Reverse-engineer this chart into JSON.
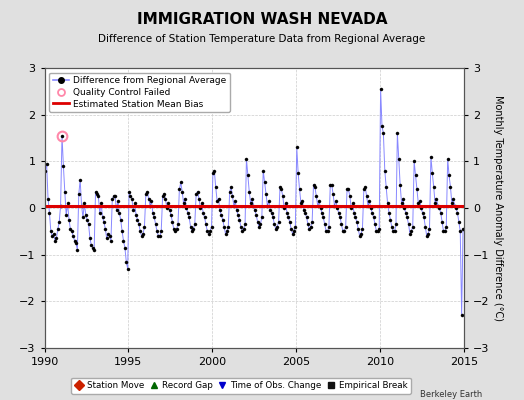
{
  "title": "IMMIGRATION WASH NEVADA",
  "subtitle": "Difference of Station Temperature Data from Regional Average",
  "ylabel": "Monthly Temperature Anomaly Difference (°C)",
  "bias": 0.05,
  "xlim": [
    1990,
    2015
  ],
  "ylim": [
    -3,
    3
  ],
  "yticks": [
    -3,
    -2,
    -1,
    0,
    1,
    2,
    3
  ],
  "xticks": [
    1990,
    1995,
    2000,
    2005,
    2010,
    2015
  ],
  "bg_color": "#e0e0e0",
  "plot_bg_color": "#ffffff",
  "line_color": "#8888ff",
  "marker_color": "#000000",
  "bias_color": "#dd0000",
  "qc_edge_color": "#ff88aa",
  "watermark": "Berkeley Earth",
  "data_x": [
    1990.042,
    1990.125,
    1990.208,
    1990.292,
    1990.375,
    1990.458,
    1990.542,
    1990.625,
    1990.708,
    1990.792,
    1990.875,
    1990.958,
    1991.042,
    1991.125,
    1991.208,
    1991.292,
    1991.375,
    1991.458,
    1991.542,
    1991.625,
    1991.708,
    1991.792,
    1991.875,
    1991.958,
    1992.042,
    1992.125,
    1992.208,
    1992.292,
    1992.375,
    1992.458,
    1992.542,
    1992.625,
    1992.708,
    1992.792,
    1992.875,
    1992.958,
    1993.042,
    1993.125,
    1993.208,
    1993.292,
    1993.375,
    1993.458,
    1993.542,
    1993.625,
    1993.708,
    1993.792,
    1993.875,
    1993.958,
    1994.042,
    1994.125,
    1994.208,
    1994.292,
    1994.375,
    1994.458,
    1994.542,
    1994.625,
    1994.708,
    1994.792,
    1994.875,
    1994.958,
    1995.042,
    1995.125,
    1995.208,
    1995.292,
    1995.375,
    1995.458,
    1995.542,
    1995.625,
    1995.708,
    1995.792,
    1995.875,
    1995.958,
    1996.042,
    1996.125,
    1996.208,
    1996.292,
    1996.375,
    1996.458,
    1996.542,
    1996.625,
    1996.708,
    1996.792,
    1996.875,
    1996.958,
    1997.042,
    1997.125,
    1997.208,
    1997.292,
    1997.375,
    1997.458,
    1997.542,
    1997.625,
    1997.708,
    1997.792,
    1997.875,
    1997.958,
    1998.042,
    1998.125,
    1998.208,
    1998.292,
    1998.375,
    1998.458,
    1998.542,
    1998.625,
    1998.708,
    1998.792,
    1998.875,
    1998.958,
    1999.042,
    1999.125,
    1999.208,
    1999.292,
    1999.375,
    1999.458,
    1999.542,
    1999.625,
    1999.708,
    1999.792,
    1999.875,
    1999.958,
    2000.042,
    2000.125,
    2000.208,
    2000.292,
    2000.375,
    2000.458,
    2000.542,
    2000.625,
    2000.708,
    2000.792,
    2000.875,
    2000.958,
    2001.042,
    2001.125,
    2001.208,
    2001.292,
    2001.375,
    2001.458,
    2001.542,
    2001.625,
    2001.708,
    2001.792,
    2001.875,
    2001.958,
    2002.042,
    2002.125,
    2002.208,
    2002.292,
    2002.375,
    2002.458,
    2002.542,
    2002.625,
    2002.708,
    2002.792,
    2002.875,
    2002.958,
    2003.042,
    2003.125,
    2003.208,
    2003.292,
    2003.375,
    2003.458,
    2003.542,
    2003.625,
    2003.708,
    2003.792,
    2003.875,
    2003.958,
    2004.042,
    2004.125,
    2004.208,
    2004.292,
    2004.375,
    2004.458,
    2004.542,
    2004.625,
    2004.708,
    2004.792,
    2004.875,
    2004.958,
    2005.042,
    2005.125,
    2005.208,
    2005.292,
    2005.375,
    2005.458,
    2005.542,
    2005.625,
    2005.708,
    2005.792,
    2005.875,
    2005.958,
    2006.042,
    2006.125,
    2006.208,
    2006.292,
    2006.375,
    2006.458,
    2006.542,
    2006.625,
    2006.708,
    2006.792,
    2006.875,
    2006.958,
    2007.042,
    2007.125,
    2007.208,
    2007.292,
    2007.375,
    2007.458,
    2007.542,
    2007.625,
    2007.708,
    2007.792,
    2007.875,
    2007.958,
    2008.042,
    2008.125,
    2008.208,
    2008.292,
    2008.375,
    2008.458,
    2008.542,
    2008.625,
    2008.708,
    2008.792,
    2008.875,
    2008.958,
    2009.042,
    2009.125,
    2009.208,
    2009.292,
    2009.375,
    2009.458,
    2009.542,
    2009.625,
    2009.708,
    2009.792,
    2009.875,
    2009.958,
    2010.042,
    2010.125,
    2010.208,
    2010.292,
    2010.375,
    2010.458,
    2010.542,
    2010.625,
    2010.708,
    2010.792,
    2010.875,
    2010.958,
    2011.042,
    2011.125,
    2011.208,
    2011.292,
    2011.375,
    2011.458,
    2011.542,
    2011.625,
    2011.708,
    2011.792,
    2011.875,
    2011.958,
    2012.042,
    2012.125,
    2012.208,
    2012.292,
    2012.375,
    2012.458,
    2012.542,
    2012.625,
    2012.708,
    2012.792,
    2012.875,
    2012.958,
    2013.042,
    2013.125,
    2013.208,
    2013.292,
    2013.375,
    2013.458,
    2013.542,
    2013.625,
    2013.708,
    2013.792,
    2013.875,
    2013.958,
    2014.042,
    2014.125,
    2014.208,
    2014.292,
    2014.375,
    2014.458,
    2014.542,
    2014.625,
    2014.708,
    2014.792,
    2014.875,
    2014.958
  ],
  "data_y": [
    0.8,
    0.95,
    0.2,
    -0.1,
    -0.5,
    -0.6,
    -0.55,
    -0.7,
    -0.65,
    -0.45,
    -0.3,
    0.05,
    1.55,
    0.9,
    0.35,
    -0.15,
    0.1,
    -0.25,
    -0.45,
    -0.5,
    -0.6,
    -0.7,
    -0.75,
    -0.9,
    0.3,
    0.6,
    0.05,
    -0.2,
    0.1,
    -0.15,
    -0.25,
    -0.35,
    -0.65,
    -0.8,
    -0.85,
    -0.9,
    0.35,
    0.3,
    0.25,
    -0.1,
    0.1,
    -0.2,
    -0.3,
    -0.45,
    -0.65,
    -0.55,
    -0.6,
    -0.7,
    0.2,
    0.25,
    0.25,
    -0.05,
    0.15,
    -0.1,
    -0.25,
    -0.5,
    -0.7,
    -0.85,
    -1.15,
    -1.3,
    0.35,
    0.25,
    0.2,
    -0.05,
    0.1,
    -0.15,
    -0.25,
    -0.35,
    -0.5,
    -0.6,
    -0.55,
    -0.4,
    0.3,
    0.35,
    0.2,
    0.05,
    0.15,
    -0.1,
    -0.2,
    -0.35,
    -0.5,
    -0.6,
    -0.6,
    -0.5,
    0.25,
    0.3,
    0.2,
    0.0,
    0.1,
    -0.05,
    -0.15,
    -0.3,
    -0.45,
    -0.5,
    -0.45,
    -0.35,
    0.4,
    0.55,
    0.35,
    0.1,
    0.2,
    0.0,
    -0.1,
    -0.2,
    -0.4,
    -0.5,
    -0.45,
    -0.35,
    0.3,
    0.35,
    0.2,
    0.0,
    0.1,
    -0.1,
    -0.2,
    -0.35,
    -0.5,
    -0.55,
    -0.5,
    -0.4,
    0.75,
    0.8,
    0.45,
    0.15,
    0.2,
    -0.05,
    -0.15,
    -0.25,
    -0.4,
    -0.55,
    -0.5,
    -0.4,
    0.35,
    0.45,
    0.25,
    0.05,
    0.15,
    -0.05,
    -0.15,
    -0.25,
    -0.4,
    -0.5,
    -0.45,
    -0.35,
    1.05,
    0.7,
    0.35,
    0.1,
    0.2,
    0.05,
    -0.05,
    -0.15,
    -0.3,
    -0.4,
    -0.35,
    -0.2,
    0.8,
    0.55,
    0.3,
    0.05,
    0.15,
    -0.05,
    -0.1,
    -0.2,
    -0.35,
    -0.45,
    -0.4,
    -0.3,
    0.45,
    0.4,
    0.25,
    0.0,
    0.1,
    -0.1,
    -0.2,
    -0.3,
    -0.45,
    -0.55,
    -0.5,
    -0.4,
    1.3,
    0.75,
    0.4,
    0.1,
    0.15,
    -0.05,
    -0.1,
    -0.2,
    -0.35,
    -0.45,
    -0.4,
    -0.3,
    0.5,
    0.45,
    0.25,
    0.05,
    0.15,
    0.0,
    -0.1,
    -0.2,
    -0.35,
    -0.5,
    -0.5,
    -0.4,
    0.5,
    0.5,
    0.3,
    0.05,
    0.15,
    0.0,
    -0.1,
    -0.2,
    -0.35,
    -0.5,
    -0.5,
    -0.4,
    0.4,
    0.4,
    0.25,
    0.0,
    0.1,
    -0.1,
    -0.2,
    -0.3,
    -0.45,
    -0.6,
    -0.55,
    -0.45,
    0.4,
    0.45,
    0.25,
    0.05,
    0.15,
    0.0,
    -0.1,
    -0.2,
    -0.35,
    -0.5,
    -0.5,
    -0.45,
    2.55,
    1.75,
    1.6,
    0.8,
    0.45,
    0.1,
    -0.1,
    -0.25,
    -0.4,
    -0.5,
    -0.5,
    -0.35,
    1.6,
    1.05,
    0.5,
    0.1,
    0.2,
    0.0,
    -0.1,
    -0.2,
    -0.35,
    -0.55,
    -0.5,
    -0.4,
    1.0,
    0.7,
    0.4,
    0.1,
    0.15,
    0.0,
    -0.1,
    -0.2,
    -0.4,
    -0.6,
    -0.55,
    -0.45,
    1.1,
    0.75,
    0.45,
    0.1,
    0.2,
    0.05,
    0.0,
    -0.1,
    -0.3,
    -0.5,
    -0.5,
    -0.4,
    1.05,
    0.7,
    0.45,
    0.1,
    0.2,
    0.05,
    0.0,
    -0.1,
    -0.3,
    -0.5,
    -2.3,
    -0.45
  ],
  "qc_failed_x": [
    1991.042
  ],
  "qc_failed_y": [
    1.55
  ]
}
